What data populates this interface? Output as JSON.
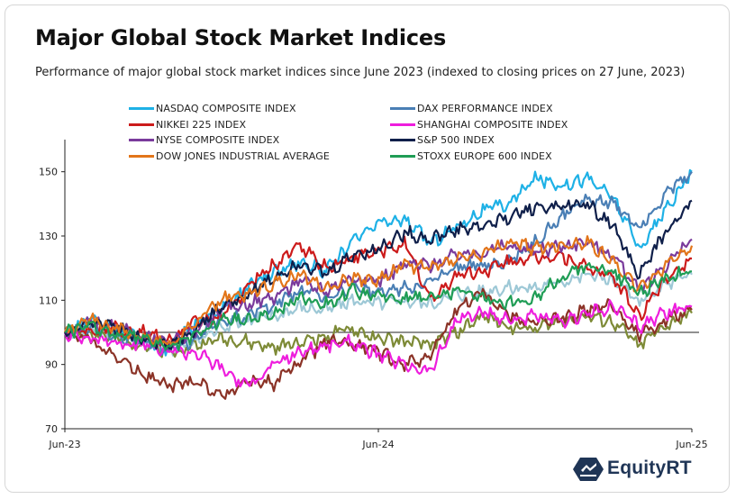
{
  "title": "Major Global Stock Market Indices",
  "subtitle": "Performance of major global stock market indices since June 2023 (indexed to closing prices on 27 June, 2023)",
  "brand": {
    "name": "EquityRT",
    "logo_icon": "equityrt-logo-icon",
    "color": "#1f3556"
  },
  "chart_data": {
    "type": "line",
    "x_ticks": [
      "Jun-23",
      "Jun-24",
      "Jun-25"
    ],
    "x_range": [
      "2023-06",
      "2025-06"
    ],
    "ylim": [
      70,
      160
    ],
    "y_ticks": [
      70,
      90,
      110,
      130,
      150
    ],
    "baseline": 100,
    "grid": false,
    "legend_position": "top",
    "x": [
      "2023-06",
      "2023-07",
      "2023-08",
      "2023-09",
      "2023-10",
      "2023-11",
      "2023-12",
      "2024-01",
      "2024-02",
      "2024-03",
      "2024-04",
      "2024-05",
      "2024-06",
      "2024-07",
      "2024-08",
      "2024-09",
      "2024-10",
      "2024-11",
      "2024-12",
      "2025-01",
      "2025-02",
      "2025-03",
      "2025-04",
      "2025-05",
      "2025-06"
    ],
    "series": [
      {
        "name": "NASDAQ COMPOSITE INDEX",
        "color": "#1eb1e6",
        "values": [
          100,
          104,
          101,
          98,
          95,
          103,
          107,
          114,
          119,
          122,
          119,
          128,
          134,
          135,
          128,
          133,
          138,
          140,
          148,
          146,
          148,
          142,
          126,
          138,
          150
        ]
      },
      {
        "name": "DAX PERFORMANCE INDEX",
        "color": "#4a7fb5",
        "values": [
          100,
          102,
          99,
          97,
          94,
          98,
          104,
          105,
          109,
          113,
          111,
          114,
          112,
          114,
          116,
          120,
          121,
          122,
          128,
          136,
          142,
          140,
          133,
          143,
          150
        ]
      },
      {
        "name": "NIKKEI 225 INDEX",
        "color": "#cc1b1b",
        "values": [
          100,
          101,
          101,
          100,
          97,
          103,
          105,
          114,
          121,
          127,
          120,
          123,
          125,
          128,
          110,
          118,
          119,
          122,
          123,
          124,
          120,
          117,
          105,
          117,
          123
        ]
      },
      {
        "name": "SHANGHAI COMPOSITE INDEX",
        "color": "#ee1ddd",
        "values": [
          100,
          98,
          97,
          96,
          94,
          94,
          89,
          83,
          90,
          94,
          96,
          97,
          93,
          90,
          88,
          104,
          106,
          104,
          105,
          103,
          106,
          108,
          102,
          106,
          108
        ]
      },
      {
        "name": "NYSE COMPOSITE INDEX",
        "color": "#7a3b9c",
        "values": [
          100,
          103,
          101,
          99,
          96,
          101,
          107,
          109,
          111,
          116,
          113,
          117,
          116,
          121,
          121,
          124,
          125,
          127,
          125,
          127,
          128,
          124,
          113,
          121,
          129
        ]
      },
      {
        "name": "S&P 500 INDEX",
        "color": "#0f1f4a",
        "values": [
          100,
          103,
          101,
          98,
          96,
          101,
          108,
          112,
          117,
          122,
          118,
          124,
          126,
          131,
          129,
          132,
          133,
          136,
          139,
          139,
          140,
          133,
          118,
          131,
          141
        ]
      },
      {
        "name": "DOW JONES INDUSTRIAL AVERAGE",
        "color": "#e2751a",
        "values": [
          100,
          104,
          101,
          99,
          96,
          103,
          110,
          112,
          115,
          118,
          114,
          117,
          116,
          121,
          120,
          123,
          124,
          128,
          126,
          127,
          128,
          122,
          113,
          121,
          127
        ]
      },
      {
        "name": "STOXX EUROPE 600 INDEX",
        "color": "#1f9d55",
        "values": [
          100,
          102,
          99,
          98,
          95,
          99,
          104,
          104,
          106,
          111,
          109,
          113,
          111,
          111,
          111,
          113,
          111,
          109,
          111,
          117,
          121,
          119,
          112,
          117,
          119
        ]
      },
      {
        "name": "",
        "color": "#9dc8d6",
        "values": [
          100,
          101,
          99,
          97,
          94,
          97,
          102,
          104,
          105,
          108,
          107,
          110,
          109,
          110,
          109,
          112,
          113,
          114,
          114,
          116,
          118,
          116,
          109,
          115,
          118
        ]
      },
      {
        "name": "",
        "color": "#7d8a36",
        "values": [
          100,
          100,
          98,
          96,
          94,
          96,
          98,
          97,
          95,
          97,
          99,
          101,
          98,
          97,
          96,
          100,
          105,
          102,
          101,
          104,
          105,
          103,
          96,
          102,
          106
        ]
      },
      {
        "name": "",
        "color": "#8b3327",
        "values": [
          100,
          98,
          92,
          87,
          83,
          85,
          80,
          85,
          84,
          91,
          97,
          96,
          94,
          90,
          93,
          107,
          113,
          105,
          103,
          104,
          107,
          108,
          99,
          104,
          107
        ]
      }
    ]
  }
}
